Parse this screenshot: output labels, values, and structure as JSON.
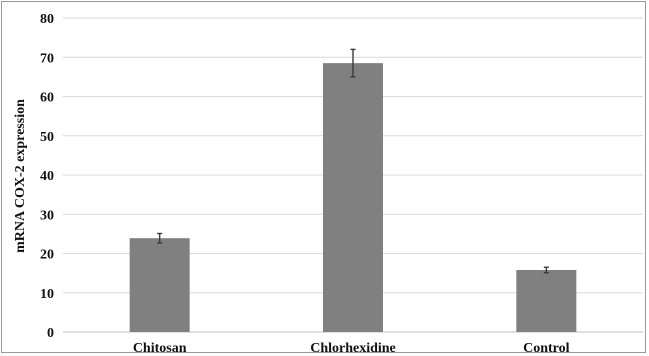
{
  "chart_data": {
    "type": "bar",
    "title": "",
    "xlabel": "",
    "ylabel": "mRNA COX-2 expression",
    "categories": [
      "Chitosan",
      "Chlorhexidine",
      "Control"
    ],
    "values": [
      23.9,
      68.5,
      15.8
    ],
    "error": [
      1.2,
      3.5,
      0.7
    ],
    "ylim": [
      0,
      80
    ],
    "yticks": [
      "0",
      "10",
      "20",
      "30",
      "40",
      "50",
      "60",
      "70",
      "80"
    ],
    "grid": true,
    "legend": "none",
    "bar_color": "#808080",
    "error_bar_color": "#3a3a3a"
  }
}
